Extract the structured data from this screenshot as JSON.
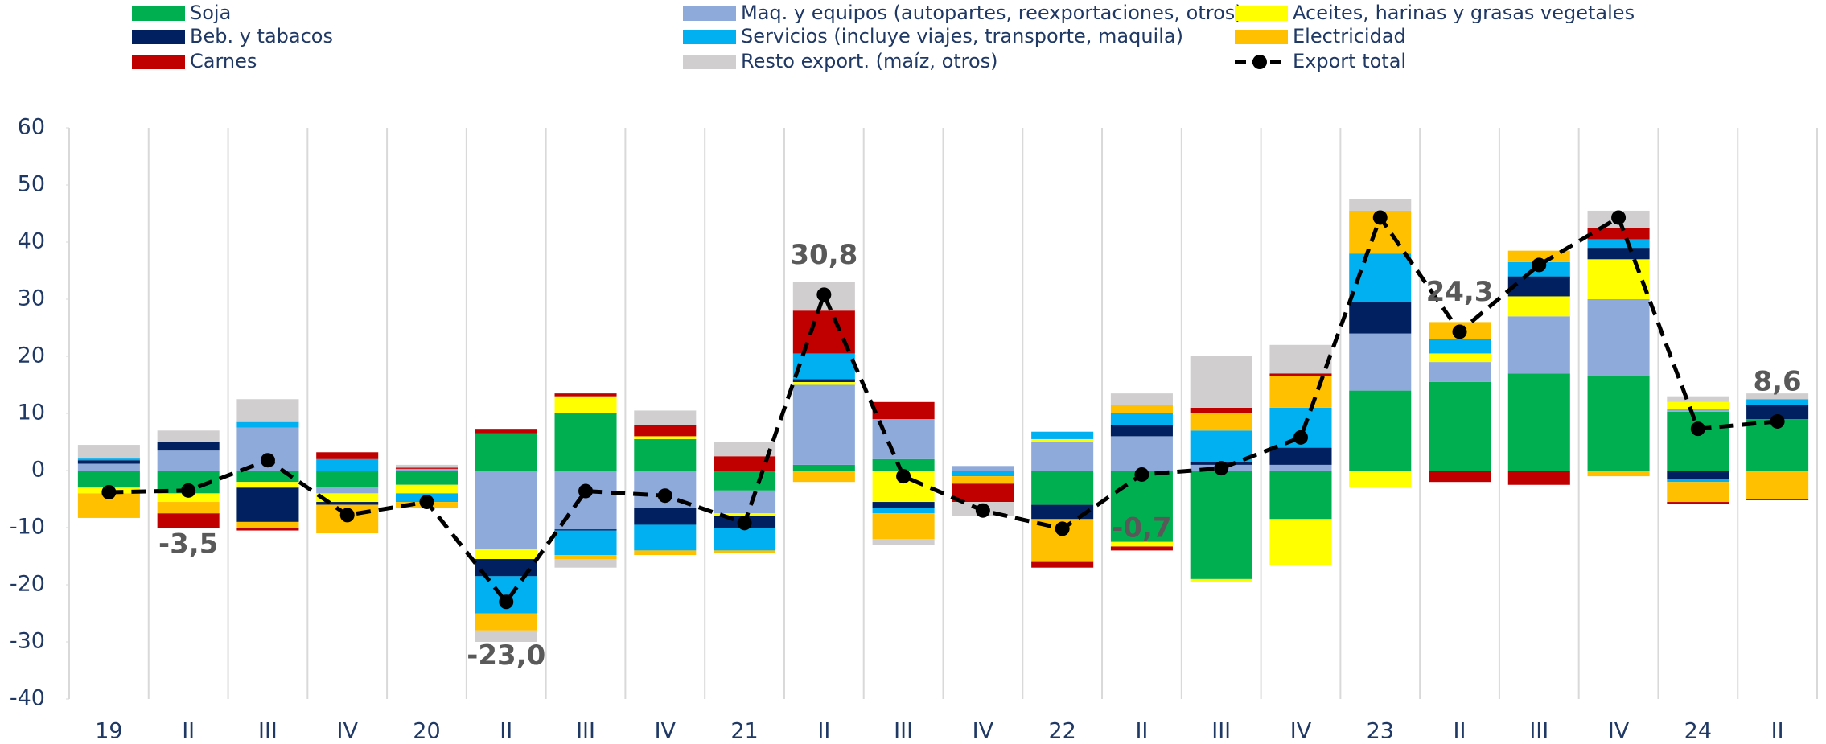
{
  "chart_data": {
    "type": "stacked_bar",
    "categories": [
      "19",
      "II",
      "III",
      "IV",
      "20",
      "II",
      "III",
      "IV",
      "21",
      "II",
      "III",
      "IV",
      "22",
      "II",
      "III",
      "IV",
      "23",
      "II",
      "III",
      "IV",
      "24",
      "II"
    ],
    "ylim": [
      -40,
      60
    ],
    "yticks": [
      -40,
      -30,
      -20,
      -10,
      0,
      10,
      20,
      30,
      40,
      50,
      60
    ],
    "series": [
      {
        "name": "Soja",
        "color": "#00b050",
        "values": [
          -3,
          -4,
          -2,
          -3,
          -2.5,
          6.5,
          10,
          5.5,
          -3.5,
          1,
          2,
          0,
          -6,
          -12.5,
          -19,
          -8.5,
          14,
          15.5,
          17,
          16.5,
          10.3,
          9
        ]
      },
      {
        "name": "Maq. y equipos (autopartes, reexportaciones, otros)",
        "color": "#8eaadb",
        "values": [
          1.2,
          3.5,
          7.5,
          -1,
          0.3,
          -13.7,
          -10.3,
          -6.5,
          -4,
          14,
          7,
          0.8,
          5,
          6,
          1,
          1,
          10,
          3.5,
          10,
          13.5,
          0.5,
          0
        ]
      },
      {
        "name": "Aceites, harinas y grasas vegetales",
        "color": "#ffff00",
        "values": [
          -1,
          -1.5,
          -1,
          -1.5,
          -1.5,
          -1.8,
          3,
          0.5,
          -0.5,
          0.5,
          -5.5,
          0,
          0.5,
          -0.8,
          -0.5,
          -8,
          -3,
          1.5,
          3.5,
          7,
          1.2,
          0
        ]
      },
      {
        "name": "Beb. y tabacos",
        "color": "#002060",
        "values": [
          0.6,
          1.5,
          -6,
          -0.5,
          0,
          -3,
          -0.2,
          -3,
          -2,
          0.5,
          -1,
          0,
          -2.5,
          2,
          0.5,
          3,
          5.5,
          0,
          3.5,
          2,
          -1.5,
          2.5
        ]
      },
      {
        "name": "Servicios (incluye viajes, transporte, maquila)",
        "color": "#00b0f0",
        "values": [
          0.3,
          0,
          1,
          2,
          -1.5,
          -6.5,
          -4.3,
          -4.5,
          -4,
          4.5,
          -1,
          -1,
          1.3,
          2,
          5.5,
          7,
          8.5,
          2.5,
          2.5,
          1.5,
          -0.5,
          1
        ]
      },
      {
        "name": "Electricidad",
        "color": "#ffc000",
        "values": [
          -4.3,
          -2,
          -1,
          -5,
          -1,
          -3,
          -0.7,
          -0.8,
          -0.5,
          -2,
          -4.5,
          -1.3,
          -7.5,
          1.5,
          3,
          5.5,
          7.5,
          3,
          2,
          -1,
          -3.5,
          -5
        ]
      },
      {
        "name": "Carnes",
        "color": "#c00000",
        "values": [
          0,
          -2.5,
          -0.5,
          1.2,
          0.2,
          0.8,
          0.5,
          2,
          2.5,
          7.5,
          3,
          -3.2,
          -1,
          -0.7,
          1,
          0.5,
          0,
          -2,
          -2.5,
          2,
          -0.3,
          -0.2
        ]
      },
      {
        "name": "Resto export. (maíz, otros)",
        "color": "#d0cece",
        "values": [
          2.4,
          2,
          4,
          0,
          0.5,
          -2,
          -1.5,
          2.5,
          2.5,
          5,
          -1,
          -2.5,
          0,
          2,
          9,
          5,
          2,
          0,
          0,
          3,
          1,
          1
        ]
      }
    ],
    "line": {
      "name": "Export total",
      "color": "#000000",
      "values": [
        -3.8,
        -3.5,
        1.8,
        -7.8,
        -5.5,
        -23,
        -3.6,
        -4.4,
        -9.2,
        30.8,
        -1,
        -7,
        -10.2,
        -0.7,
        0.4,
        5.8,
        44.3,
        24.3,
        36,
        44.3,
        7.3,
        8.6
      ],
      "value_labels": [
        null,
        "-3,5",
        null,
        null,
        null,
        "-23,0",
        null,
        null,
        null,
        "30,8",
        null,
        null,
        null,
        "-0,7",
        null,
        null,
        null,
        "24,3",
        null,
        null,
        null,
        "8,6"
      ]
    }
  }
}
